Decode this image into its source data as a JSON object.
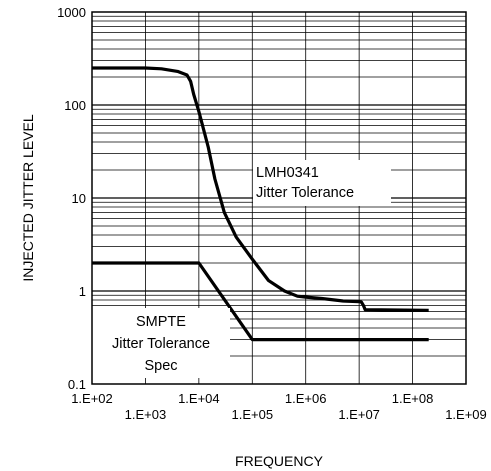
{
  "chart_data": {
    "type": "line",
    "xlabel": "FREQUENCY",
    "ylabel": "INJECTED JITTER LEVEL",
    "xscale": "log",
    "yscale": "log",
    "xlim": [
      100,
      1000000000
    ],
    "ylim": [
      0.1,
      1000
    ],
    "grid": true,
    "x_tick_labels": [
      "1.E+02",
      "1.E+03",
      "1.E+04",
      "1.E+05",
      "1.E+06",
      "1.E+07",
      "1.E+08",
      "1.E+09"
    ],
    "y_tick_labels": [
      "0.1",
      "1",
      "10",
      "100",
      "1000"
    ],
    "annotations": [
      {
        "id": "lmh",
        "lines": [
          "LMH0341",
          "Jitter Tolerance"
        ]
      },
      {
        "id": "smpte",
        "lines": [
          "SMPTE",
          "Jitter Tolerance",
          "Spec"
        ]
      }
    ],
    "series": [
      {
        "x": [
          100,
          300,
          1000,
          2000,
          4000,
          6000,
          7000,
          8000,
          10000,
          15000,
          20000,
          30000,
          50000,
          100000,
          200000,
          400000,
          700000,
          1000000,
          2000000,
          5000000,
          10000000,
          11000000,
          12000000,
          13000000,
          200000000
        ],
        "y": [
          250,
          250,
          250,
          245,
          230,
          210,
          180,
          130,
          85,
          35,
          16,
          7,
          3.8,
          2.2,
          1.3,
          1.0,
          0.88,
          0.86,
          0.83,
          0.78,
          0.77,
          0.76,
          0.7,
          0.63,
          0.62
        ]
      },
      {
        "x": [
          100,
          10000,
          100000,
          200000000
        ],
        "y": [
          2,
          2,
          0.3,
          0.3
        ]
      }
    ]
  }
}
